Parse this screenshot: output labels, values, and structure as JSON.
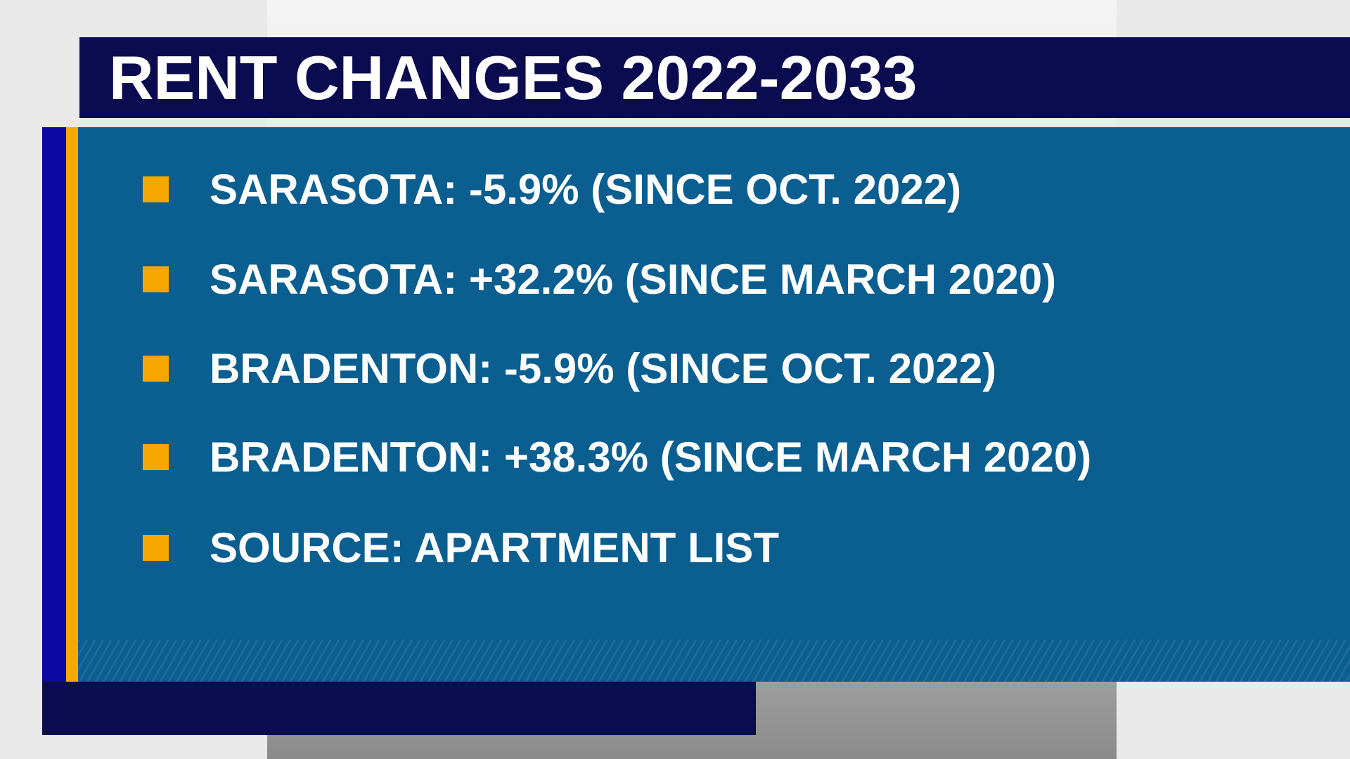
{
  "header": {
    "title": "RENT CHANGES 2022-2033"
  },
  "bullets": [
    "SARASOTA: -5.9% (SINCE OCT. 2022)",
    "SARASOTA: +32.2% (SINCE MARCH 2020)",
    "BRADENTON: -5.9% (SINCE OCT. 2022)",
    "BRADENTON: +38.3% (SINCE MARCH 2020)",
    "SOURCE: APARTMENT LIST"
  ]
}
